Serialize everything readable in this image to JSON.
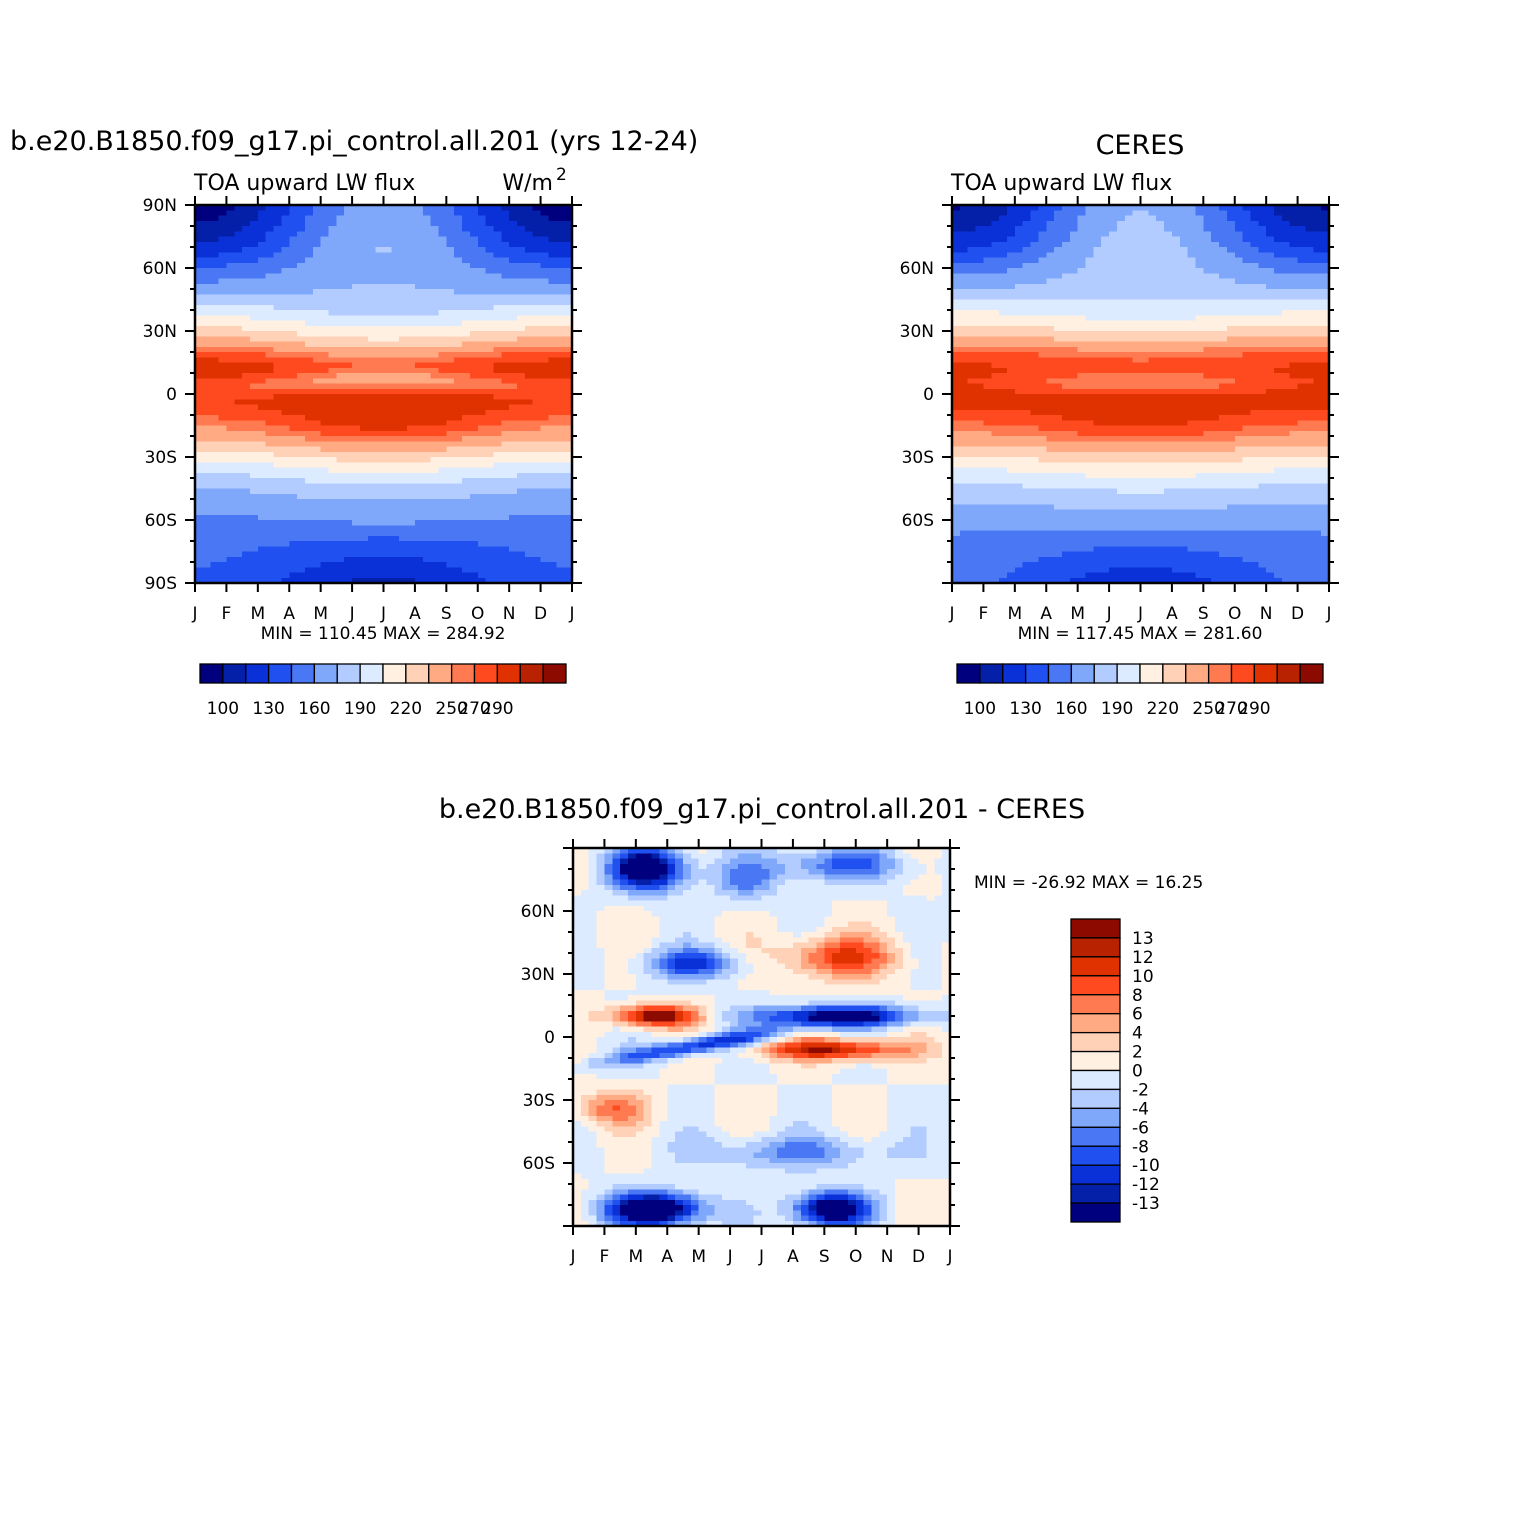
{
  "figure": {
    "panels": [
      {
        "id": "model",
        "header": "b.e20.B1850.f09_g17.pi_control.all.201 (yrs 12-24)",
        "left_label": "TOA upward LW flux",
        "right_label": "W/m",
        "right_label_sup": "2",
        "stats": "MIN = 110.45 MAX = 284.92"
      },
      {
        "id": "obs",
        "header": "CERES",
        "left_label": "TOA upward LW flux",
        "right_label": "",
        "right_label_sup": "",
        "stats": "MIN = 117.45 MAX = 281.60"
      },
      {
        "id": "diff",
        "header": "b.e20.B1850.f09_g17.pi_control.all.201 - CERES",
        "left_label": "",
        "right_label": "",
        "right_label_sup": "",
        "stats": "MIN = -26.92 MAX = 16.25"
      }
    ],
    "month_labels": [
      "J",
      "F",
      "M",
      "A",
      "M",
      "J",
      "J",
      "A",
      "S",
      "O",
      "N",
      "D",
      "J"
    ],
    "lat_labels_full": [
      "90N",
      "60N",
      "30N",
      "0",
      "30S",
      "60S",
      "90S"
    ],
    "lat_labels_short": [
      "60N",
      "30N",
      "0",
      "30S",
      "60S"
    ]
  },
  "chart_data": [
    {
      "type": "heatmap",
      "title": "b.e20.B1850.f09_g17.pi_control.all.201 (yrs 12-24)",
      "variable": "TOA upward LW flux",
      "units": "W/m2",
      "x_axis": "month",
      "y_axis": "latitude",
      "xlim": [
        1,
        13
      ],
      "ylim": [
        -90,
        90
      ],
      "min": 110.45,
      "max": 284.92,
      "colorbar_ticks": [
        "100",
        "130",
        "160",
        "190",
        "220",
        "250",
        "270",
        "290"
      ],
      "colorbar_colors": [
        "#00007f",
        "#0520a8",
        "#0a30d8",
        "#2050f0",
        "#4a78f5",
        "#80a8fa",
        "#b2ccff",
        "#dcebff",
        "#fff0e2",
        "#ffd2b8",
        "#ffaa82",
        "#ff7a50",
        "#ff4a20",
        "#e03200",
        "#b82200",
        "#8c0a00"
      ],
      "grid": false
    },
    {
      "type": "heatmap",
      "title": "CERES",
      "variable": "TOA upward LW flux",
      "x_axis": "month",
      "y_axis": "latitude",
      "xlim": [
        1,
        13
      ],
      "ylim": [
        -90,
        90
      ],
      "min": 117.45,
      "max": 281.6,
      "colorbar_ticks": [
        "100",
        "130",
        "160",
        "190",
        "220",
        "250",
        "270",
        "290"
      ],
      "colorbar_colors": [
        "#00007f",
        "#0520a8",
        "#0a30d8",
        "#2050f0",
        "#4a78f5",
        "#80a8fa",
        "#b2ccff",
        "#dcebff",
        "#fff0e2",
        "#ffd2b8",
        "#ffaa82",
        "#ff7a50",
        "#ff4a20",
        "#e03200",
        "#b82200",
        "#8c0a00"
      ],
      "grid": false
    },
    {
      "type": "heatmap",
      "title": "b.e20.B1850.f09_g17.pi_control.all.201 - CERES",
      "x_axis": "month",
      "y_axis": "latitude",
      "xlim": [
        1,
        13
      ],
      "ylim": [
        -90,
        90
      ],
      "min": -26.92,
      "max": 16.25,
      "colorbar_ticks": [
        "13",
        "12",
        "10",
        "8",
        "6",
        "4",
        "2",
        "0",
        "-2",
        "-4",
        "-6",
        "-8",
        "-10",
        "-12",
        "-13"
      ],
      "colorbar_colors": [
        "#8c0a00",
        "#b82200",
        "#e03200",
        "#ff4a20",
        "#ff7a50",
        "#ffaa82",
        "#ffd2b8",
        "#fff0e2",
        "#dcebff",
        "#b2ccff",
        "#80a8fa",
        "#4a78f5",
        "#2050f0",
        "#0a30d8",
        "#0520a8",
        "#00007f"
      ],
      "grid": false
    }
  ]
}
